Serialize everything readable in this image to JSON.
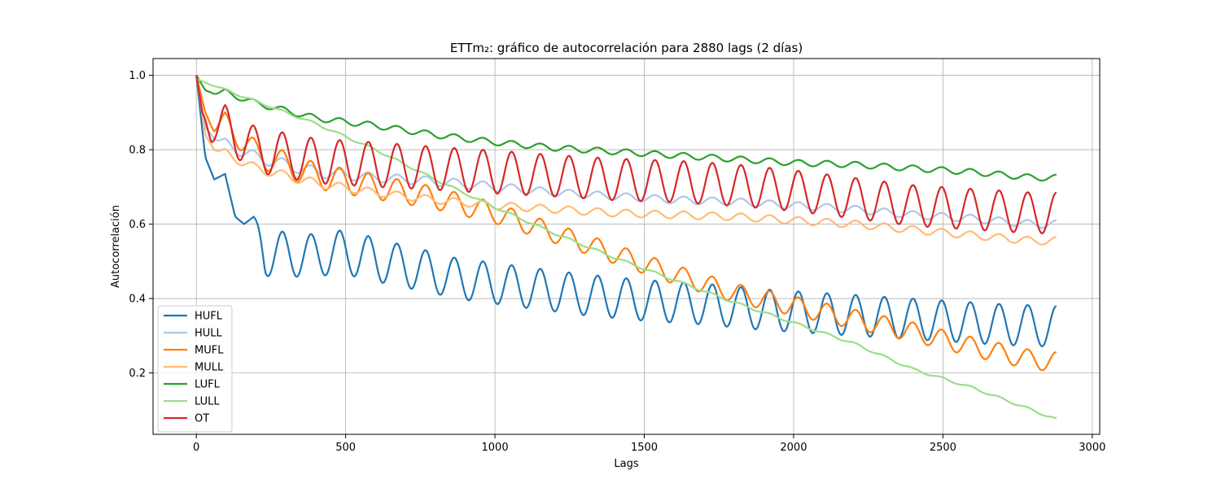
{
  "chart_data": {
    "type": "line",
    "title": "ETTm₂: gráfico de autocorrelación para 2880 lags (2 días)",
    "xlabel": "Lags",
    "ylabel": "Autocorrelación",
    "xlim": [
      -145,
      3025
    ],
    "ylim": [
      0.035,
      1.045
    ],
    "xticks": [
      0,
      500,
      1000,
      1500,
      2000,
      2500,
      3000
    ],
    "xtick_labels": [
      "0",
      "500",
      "1000",
      "1500",
      "2000",
      "2500",
      "3000"
    ],
    "yticks": [
      0.2,
      0.4,
      0.6,
      0.8,
      1.0
    ],
    "ytick_labels": [
      "0.2",
      "0.4",
      "0.6",
      "0.8",
      "1.0"
    ],
    "grid": true,
    "legend_position": "lower-left",
    "x_range": [
      0,
      2880
    ],
    "period": 96,
    "series": [
      {
        "name": "HUFL",
        "color": "#1f77b4",
        "x": [
          0,
          30,
          60,
          96,
          130,
          160,
          192,
          230,
          288,
          384,
          480,
          576,
          672,
          768,
          864,
          960,
          1100,
          1300,
          1500,
          1700,
          1900,
          2100,
          2300,
          2500,
          2700,
          2880
        ],
        "base": [
          1.0,
          0.78,
          0.72,
          0.735,
          0.62,
          0.6,
          0.62,
          0.52,
          0.52,
          0.515,
          0.525,
          0.51,
          0.49,
          0.475,
          0.455,
          0.445,
          0.43,
          0.41,
          0.395,
          0.385,
          0.37,
          0.36,
          0.35,
          0.34,
          0.33,
          0.325
        ],
        "amp": [
          0,
          0,
          0,
          0,
          0,
          0,
          0,
          0.06,
          0.06,
          0.058,
          0.058,
          0.058,
          0.058,
          0.055,
          0.055,
          0.055,
          0.055,
          0.055,
          0.055,
          0.055,
          0.055,
          0.055,
          0.055,
          0.055,
          0.055,
          0.055
        ]
      },
      {
        "name": "HULL",
        "color": "#aec7e8",
        "x": [
          0,
          30,
          60,
          96,
          200,
          400,
          600,
          800,
          1000,
          1200,
          1400,
          1600,
          1800,
          2000,
          2200,
          2400,
          2600,
          2800,
          2880
        ],
        "base": [
          1.0,
          0.86,
          0.83,
          0.815,
          0.78,
          0.74,
          0.725,
          0.715,
          0.7,
          0.685,
          0.675,
          0.665,
          0.66,
          0.65,
          0.64,
          0.625,
          0.615,
          0.6,
          0.6
        ],
        "amp": [
          0,
          0,
          0,
          0.015,
          0.015,
          0.015,
          0.012,
          0.012,
          0.012,
          0.01,
          0.01,
          0.01,
          0.01,
          0.01,
          0.01,
          0.01,
          0.01,
          0.01,
          0.01
        ]
      },
      {
        "name": "MUFL",
        "color": "#ff7f0e",
        "x": [
          0,
          30,
          60,
          96,
          200,
          400,
          600,
          800,
          1000,
          1200,
          1400,
          1600,
          1800,
          2000,
          2200,
          2400,
          2600,
          2800,
          2880
        ],
        "base": [
          1.0,
          0.9,
          0.86,
          0.87,
          0.79,
          0.73,
          0.7,
          0.67,
          0.63,
          0.575,
          0.52,
          0.465,
          0.415,
          0.38,
          0.345,
          0.31,
          0.27,
          0.235,
          0.23
        ],
        "amp": [
          0,
          0,
          0.015,
          0.03,
          0.035,
          0.035,
          0.033,
          0.03,
          0.028,
          0.026,
          0.026,
          0.026,
          0.026,
          0.026,
          0.026,
          0.026,
          0.026,
          0.026,
          0.026
        ]
      },
      {
        "name": "MULL",
        "color": "#ffbb78",
        "x": [
          0,
          30,
          60,
          96,
          200,
          400,
          600,
          800,
          1000,
          1200,
          1400,
          1600,
          1800,
          2000,
          2200,
          2400,
          2600,
          2800,
          2880
        ],
        "base": [
          1.0,
          0.84,
          0.8,
          0.79,
          0.75,
          0.71,
          0.685,
          0.665,
          0.65,
          0.64,
          0.63,
          0.625,
          0.62,
          0.61,
          0.6,
          0.585,
          0.57,
          0.555,
          0.555
        ],
        "amp": [
          0,
          0,
          0,
          0.012,
          0.012,
          0.012,
          0.01,
          0.01,
          0.01,
          0.01,
          0.01,
          0.01,
          0.01,
          0.01,
          0.01,
          0.01,
          0.01,
          0.01,
          0.01
        ]
      },
      {
        "name": "LUFL",
        "color": "#2ca02c",
        "x": [
          0,
          30,
          60,
          96,
          200,
          400,
          600,
          800,
          1000,
          1200,
          1400,
          1600,
          1800,
          2000,
          2200,
          2400,
          2600,
          2800,
          2880
        ],
        "base": [
          1.0,
          0.96,
          0.95,
          0.955,
          0.925,
          0.885,
          0.865,
          0.84,
          0.82,
          0.805,
          0.795,
          0.785,
          0.775,
          0.765,
          0.76,
          0.75,
          0.74,
          0.725,
          0.725
        ],
        "amp": [
          0,
          0,
          0,
          0.008,
          0.008,
          0.008,
          0.008,
          0.008,
          0.008,
          0.008,
          0.008,
          0.008,
          0.008,
          0.008,
          0.008,
          0.008,
          0.008,
          0.008,
          0.008
        ]
      },
      {
        "name": "LULL",
        "color": "#98df8a",
        "x": [
          0,
          100,
          200,
          400,
          600,
          800,
          1000,
          1200,
          1400,
          1600,
          1800,
          2000,
          2200,
          2400,
          2600,
          2800,
          2880
        ],
        "base": [
          0.99,
          0.96,
          0.93,
          0.87,
          0.8,
          0.72,
          0.645,
          0.575,
          0.51,
          0.45,
          0.39,
          0.335,
          0.28,
          0.21,
          0.16,
          0.1,
          0.075
        ],
        "amp": [
          0,
          0.003,
          0.003,
          0.003,
          0.003,
          0.003,
          0.003,
          0.003,
          0.003,
          0.003,
          0.003,
          0.003,
          0.003,
          0.003,
          0.003,
          0.003,
          0.003
        ]
      },
      {
        "name": "OT",
        "color": "#d62728",
        "x": [
          0,
          20,
          50,
          96,
          200,
          400,
          600,
          800,
          1000,
          1200,
          1400,
          1600,
          1800,
          2000,
          2200,
          2400,
          2600,
          2800,
          2880
        ],
        "base": [
          1.0,
          0.9,
          0.85,
          0.86,
          0.8,
          0.77,
          0.76,
          0.75,
          0.74,
          0.73,
          0.72,
          0.715,
          0.705,
          0.69,
          0.67,
          0.65,
          0.64,
          0.63,
          0.63
        ],
        "amp": [
          0,
          0,
          0.03,
          0.06,
          0.06,
          0.06,
          0.06,
          0.058,
          0.058,
          0.056,
          0.056,
          0.056,
          0.056,
          0.055,
          0.055,
          0.055,
          0.055,
          0.055,
          0.055
        ]
      }
    ]
  }
}
